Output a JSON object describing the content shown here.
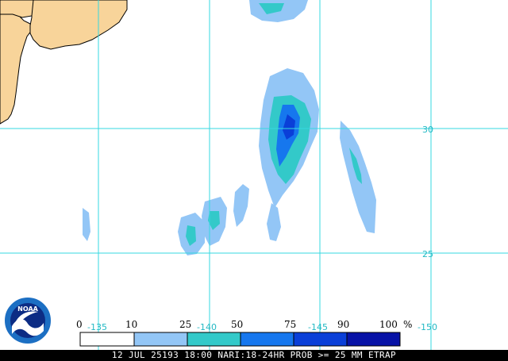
{
  "map": {
    "colors": {
      "land": "#f8d49a",
      "ocean": "#ffffff",
      "grid": "#35d8e0",
      "coast": "#000000",
      "label": "#23b9c4"
    },
    "latitude_labels": [
      "30",
      "25"
    ],
    "longitude_labels": [
      "-135",
      "-140",
      "-145",
      "-150"
    ],
    "legend": {
      "unit": "%",
      "bins": [
        {
          "label": "0",
          "color": "#ffffff"
        },
        {
          "label": "10",
          "color": "#93c6f6"
        },
        {
          "label": "25",
          "color": "#33c9c9"
        },
        {
          "label": "50",
          "color": "#1677ee"
        },
        {
          "label": "75",
          "color": "#0a3fd8"
        },
        {
          "label": "90",
          "color": "#0712a6"
        },
        {
          "label": "100",
          "color": "#06106e"
        }
      ]
    }
  },
  "status": {
    "text": "12 JUL 25193 18:00 NARI:18-24HR PROB >= 25 MM ETRAP"
  },
  "logo": {
    "text": "NOAA",
    "icon": "noaa-logo-icon",
    "colors": {
      "outer": "#1c6fc3",
      "inner": "#0c2c84",
      "white": "#ffffff"
    }
  }
}
